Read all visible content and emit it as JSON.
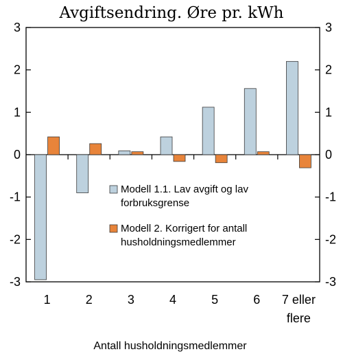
{
  "chart_data": {
    "type": "bar",
    "title": "Avgiftsendring. Øre pr. kWh",
    "xlabel": "Antall husholdningsmedlemmer",
    "ylabel": "",
    "ylim": [
      -3,
      3
    ],
    "yticks": [
      "3",
      "2",
      "1",
      "0",
      "-1",
      "-2",
      "-3"
    ],
    "categories": [
      "1",
      "2",
      "3",
      "4",
      "5",
      "6",
      [
        "7 eller",
        "flere"
      ]
    ],
    "series": [
      {
        "name": [
          "Modell 1.1. Lav avgift og lav",
          "forbruksgrense"
        ],
        "color": "#bdd1de",
        "values": [
          -2.95,
          -0.9,
          0.09,
          0.42,
          1.12,
          1.56,
          2.2
        ]
      },
      {
        "name": [
          "Modell 2. Korrigert for antall",
          "husholdningsmedlemmer"
        ],
        "color": "#e8843a",
        "values": [
          0.42,
          0.26,
          0.07,
          -0.16,
          -0.19,
          0.07,
          -0.31
        ]
      }
    ],
    "grid": false,
    "legend_position": "inside-lower-right"
  }
}
